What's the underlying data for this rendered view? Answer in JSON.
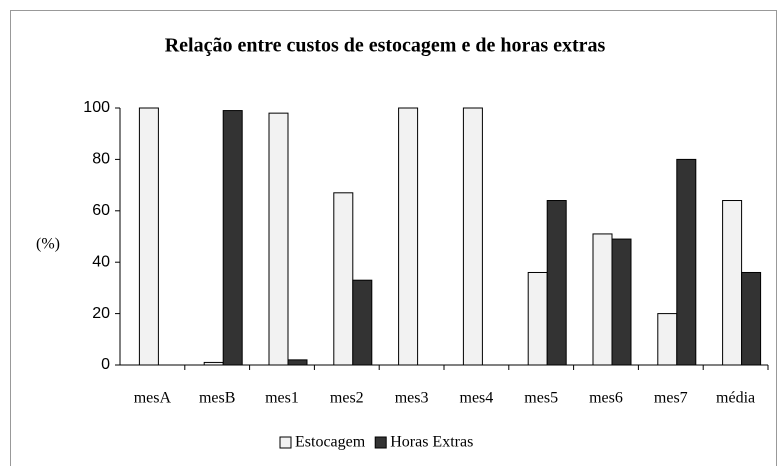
{
  "chart_data": {
    "type": "bar",
    "title": "Relação entre custos de estocagem e de horas extras",
    "y_label": "(%)",
    "categories": [
      "mesA",
      "mesB",
      "mes1",
      "mes2",
      "mes3",
      "mes4",
      "mes5",
      "mes6",
      "mes7",
      "média"
    ],
    "series": [
      {
        "name": "Estocagem",
        "color": "#f2f2f2",
        "values": [
          100,
          1,
          98,
          67,
          100,
          100,
          36,
          51,
          20,
          64
        ]
      },
      {
        "name": "Horas Extras",
        "color": "#333333",
        "values": [
          0,
          99,
          2,
          33,
          0,
          0,
          64,
          49,
          80,
          36
        ]
      }
    ],
    "ylim": [
      0,
      100
    ],
    "yticks": [
      0,
      20,
      40,
      60,
      80,
      100
    ],
    "grid": false,
    "legend": "bottom"
  }
}
